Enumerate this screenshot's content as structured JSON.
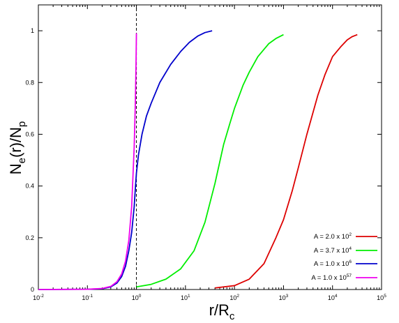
{
  "chart_data": {
    "type": "line",
    "xlabel": {
      "main": "r/R",
      "sub": "c"
    },
    "ylabel": {
      "main": "N",
      "sub": "e",
      "rest": "(r)/N",
      "sub2": "p"
    },
    "x_scale": "log",
    "xlim": [
      0.01,
      100000
    ],
    "ylim": [
      0,
      1.1
    ],
    "x_ticks": [
      {
        "value": 0.01,
        "base": "10",
        "exp": "-2"
      },
      {
        "value": 0.1,
        "base": "10",
        "exp": "-1"
      },
      {
        "value": 1,
        "base": "10",
        "exp": "0"
      },
      {
        "value": 10,
        "base": "10",
        "exp": "1"
      },
      {
        "value": 100,
        "base": "10",
        "exp": "2"
      },
      {
        "value": 1000,
        "base": "10",
        "exp": "3"
      },
      {
        "value": 10000,
        "base": "10",
        "exp": "4"
      },
      {
        "value": 100000,
        "base": "10",
        "exp": "5"
      }
    ],
    "y_ticks": [
      {
        "value": 0,
        "label": "0"
      },
      {
        "value": 0.2,
        "label": "0.2"
      },
      {
        "value": 0.4,
        "label": "0.4"
      },
      {
        "value": 0.6,
        "label": "0.6"
      },
      {
        "value": 0.8,
        "label": "0.8"
      },
      {
        "value": 1,
        "label": "1"
      }
    ],
    "reference_line": {
      "x": 1,
      "style": "dashed",
      "color": "#000000"
    },
    "grid": false,
    "legend_position": "bottom-right",
    "series": [
      {
        "name": "A = 2.0 x 10^2",
        "legend": {
          "prefix": "A = 2.0 x 10",
          "exp": "2"
        },
        "color": "#dd0000",
        "x": [
          40,
          100,
          200,
          400,
          700,
          1000,
          1500,
          2000,
          3000,
          5000,
          7000,
          10000,
          15000,
          20000,
          25000,
          32000
        ],
        "y": [
          0.006,
          0.015,
          0.04,
          0.1,
          0.2,
          0.27,
          0.38,
          0.47,
          0.6,
          0.75,
          0.83,
          0.9,
          0.94,
          0.965,
          0.977,
          0.985
        ]
      },
      {
        "name": "A = 3.7 x 10^4",
        "legend": {
          "prefix": "A = 3.7 x 10",
          "exp": "4"
        },
        "color": "#00ee00",
        "x": [
          1,
          2,
          4,
          8,
          15,
          25,
          40,
          60,
          80,
          100,
          150,
          200,
          300,
          500,
          700,
          1000
        ],
        "y": [
          0.01,
          0.02,
          0.04,
          0.08,
          0.15,
          0.26,
          0.41,
          0.56,
          0.64,
          0.7,
          0.79,
          0.84,
          0.9,
          0.95,
          0.97,
          0.985
        ]
      },
      {
        "name": "A = 1.0 x 10^6",
        "legend": {
          "prefix": "A = 1.0 x 10",
          "exp": "6"
        },
        "color": "#0000cc",
        "x": [
          0.01,
          0.1,
          0.2,
          0.3,
          0.4,
          0.5,
          0.6,
          0.7,
          0.8,
          0.9,
          0.95,
          1.0,
          1.1,
          1.3,
          1.6,
          2,
          3,
          5,
          8,
          12,
          18,
          25,
          35
        ],
        "y": [
          0.0,
          0.001,
          0.003,
          0.01,
          0.025,
          0.05,
          0.09,
          0.15,
          0.22,
          0.32,
          0.39,
          0.45,
          0.52,
          0.6,
          0.67,
          0.72,
          0.8,
          0.87,
          0.92,
          0.955,
          0.98,
          0.993,
          1.0
        ]
      },
      {
        "name": "A = 1.0 x 10^57",
        "legend": {
          "prefix": "A = 1.0 x 10",
          "exp": "57"
        },
        "color": "#ee00ee",
        "x": [
          0.01,
          0.1,
          0.2,
          0.3,
          0.4,
          0.5,
          0.6,
          0.7,
          0.8,
          0.9,
          0.95,
          0.98,
          1.0
        ],
        "y": [
          0.0,
          0.001,
          0.004,
          0.012,
          0.03,
          0.06,
          0.11,
          0.19,
          0.32,
          0.55,
          0.72,
          0.86,
          0.99
        ]
      }
    ]
  }
}
